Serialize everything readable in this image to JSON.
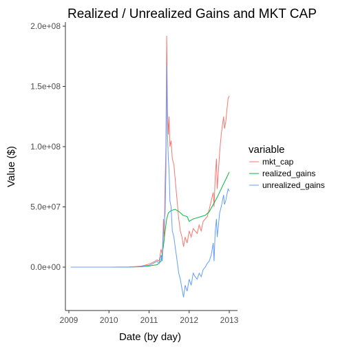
{
  "chart_data": {
    "type": "line",
    "title": "Realized / Unrealized Gains and MKT CAP",
    "xlabel": "Date (by day)",
    "ylabel": "Value ($)",
    "xlim": [
      2009.0,
      2013.0
    ],
    "ylim": [
      -25000000,
      200000000
    ],
    "x_ticks": [
      {
        "value": 2009,
        "label": "2009"
      },
      {
        "value": 2010,
        "label": "2010"
      },
      {
        "value": 2011,
        "label": "2011"
      },
      {
        "value": 2012,
        "label": "2012"
      },
      {
        "value": 2013,
        "label": "2013"
      }
    ],
    "y_ticks": [
      {
        "value": 0,
        "label": "0.0e+00"
      },
      {
        "value": 50000000,
        "label": "5.0e+07"
      },
      {
        "value": 100000000,
        "label": "1.0e+08"
      },
      {
        "value": 150000000,
        "label": "1.5e+08"
      },
      {
        "value": 200000000,
        "label": "2.0e+08"
      }
    ],
    "grid": false,
    "legend": {
      "title": "variable",
      "position": "right"
    },
    "series": [
      {
        "name": "mkt_cap",
        "color": "#F8766D",
        "points": [
          [
            2009.05,
            0
          ],
          [
            2010.0,
            0
          ],
          [
            2010.5,
            100000
          ],
          [
            2010.8,
            800000
          ],
          [
            2011.0,
            2500000
          ],
          [
            2011.1,
            4000000
          ],
          [
            2011.2,
            6000000
          ],
          [
            2011.25,
            5000000
          ],
          [
            2011.3,
            15000000
          ],
          [
            2011.33,
            10000000
          ],
          [
            2011.36,
            40000000
          ],
          [
            2011.38,
            25000000
          ],
          [
            2011.4,
            70000000
          ],
          [
            2011.42,
            100000000
          ],
          [
            2011.44,
            192000000
          ],
          [
            2011.46,
            130000000
          ],
          [
            2011.48,
            110000000
          ],
          [
            2011.5,
            125000000
          ],
          [
            2011.52,
            100000000
          ],
          [
            2011.55,
            105000000
          ],
          [
            2011.58,
            90000000
          ],
          [
            2011.62,
            85000000
          ],
          [
            2011.66,
            70000000
          ],
          [
            2011.7,
            55000000
          ],
          [
            2011.74,
            40000000
          ],
          [
            2011.78,
            30000000
          ],
          [
            2011.82,
            25000000
          ],
          [
            2011.86,
            17000000
          ],
          [
            2011.9,
            25000000
          ],
          [
            2011.95,
            20000000
          ],
          [
            2012.0,
            30000000
          ],
          [
            2012.05,
            25000000
          ],
          [
            2012.1,
            32000000
          ],
          [
            2012.15,
            30000000
          ],
          [
            2012.2,
            28000000
          ],
          [
            2012.25,
            35000000
          ],
          [
            2012.3,
            30000000
          ],
          [
            2012.35,
            38000000
          ],
          [
            2012.4,
            40000000
          ],
          [
            2012.45,
            42000000
          ],
          [
            2012.5,
            48000000
          ],
          [
            2012.55,
            55000000
          ],
          [
            2012.6,
            62000000
          ],
          [
            2012.62,
            50000000
          ],
          [
            2012.65,
            75000000
          ],
          [
            2012.68,
            90000000
          ],
          [
            2012.7,
            65000000
          ],
          [
            2012.73,
            80000000
          ],
          [
            2012.76,
            95000000
          ],
          [
            2012.8,
            110000000
          ],
          [
            2012.83,
            118000000
          ],
          [
            2012.86,
            125000000
          ],
          [
            2012.88,
            115000000
          ],
          [
            2012.91,
            120000000
          ],
          [
            2012.94,
            130000000
          ],
          [
            2012.97,
            140000000
          ],
          [
            2013.0,
            142000000
          ]
        ]
      },
      {
        "name": "realized_gains",
        "color": "#00BA38",
        "points": [
          [
            2009.05,
            0
          ],
          [
            2010.0,
            0
          ],
          [
            2010.5,
            50000
          ],
          [
            2010.8,
            300000
          ],
          [
            2011.0,
            1000000
          ],
          [
            2011.2,
            2000000
          ],
          [
            2011.3,
            5000000
          ],
          [
            2011.36,
            18000000
          ],
          [
            2011.4,
            30000000
          ],
          [
            2011.44,
            40000000
          ],
          [
            2011.48,
            45000000
          ],
          [
            2011.55,
            47000000
          ],
          [
            2011.65,
            48000000
          ],
          [
            2011.75,
            46000000
          ],
          [
            2011.85,
            43000000
          ],
          [
            2011.95,
            42000000
          ],
          [
            2012.0,
            38000000
          ],
          [
            2012.1,
            40000000
          ],
          [
            2012.2,
            41000000
          ],
          [
            2012.3,
            42000000
          ],
          [
            2012.4,
            43000000
          ],
          [
            2012.5,
            46000000
          ],
          [
            2012.6,
            52000000
          ],
          [
            2012.7,
            58000000
          ],
          [
            2012.8,
            65000000
          ],
          [
            2012.9,
            72000000
          ],
          [
            2013.0,
            79000000
          ]
        ]
      },
      {
        "name": "unrealized_gains",
        "color": "#619CFF",
        "points": [
          [
            2009.05,
            0
          ],
          [
            2010.0,
            0
          ],
          [
            2010.5,
            50000
          ],
          [
            2010.8,
            500000
          ],
          [
            2011.0,
            1500000
          ],
          [
            2011.1,
            3000000
          ],
          [
            2011.2,
            5000000
          ],
          [
            2011.25,
            3000000
          ],
          [
            2011.3,
            10000000
          ],
          [
            2011.33,
            5000000
          ],
          [
            2011.36,
            30000000
          ],
          [
            2011.4,
            45000000
          ],
          [
            2011.42,
            80000000
          ],
          [
            2011.44,
            168000000
          ],
          [
            2011.46,
            110000000
          ],
          [
            2011.48,
            90000000
          ],
          [
            2011.5,
            80000000
          ],
          [
            2011.52,
            55000000
          ],
          [
            2011.55,
            50000000
          ],
          [
            2011.58,
            30000000
          ],
          [
            2011.62,
            25000000
          ],
          [
            2011.66,
            15000000
          ],
          [
            2011.7,
            5000000
          ],
          [
            2011.74,
            -5000000
          ],
          [
            2011.78,
            -10000000
          ],
          [
            2011.82,
            -18000000
          ],
          [
            2011.86,
            -25000000
          ],
          [
            2011.9,
            -15000000
          ],
          [
            2011.95,
            -20000000
          ],
          [
            2012.0,
            -10000000
          ],
          [
            2012.05,
            -15000000
          ],
          [
            2012.1,
            -5000000
          ],
          [
            2012.15,
            -8000000
          ],
          [
            2012.2,
            -10000000
          ],
          [
            2012.25,
            -5000000
          ],
          [
            2012.3,
            -8000000
          ],
          [
            2012.35,
            -2000000
          ],
          [
            2012.4,
            0
          ],
          [
            2012.45,
            3000000
          ],
          [
            2012.5,
            5000000
          ],
          [
            2012.55,
            10000000
          ],
          [
            2012.6,
            20000000
          ],
          [
            2012.62,
            5000000
          ],
          [
            2012.65,
            30000000
          ],
          [
            2012.68,
            40000000
          ],
          [
            2012.7,
            25000000
          ],
          [
            2012.73,
            35000000
          ],
          [
            2012.76,
            45000000
          ],
          [
            2012.8,
            50000000
          ],
          [
            2012.83,
            55000000
          ],
          [
            2012.86,
            60000000
          ],
          [
            2012.88,
            52000000
          ],
          [
            2012.91,
            55000000
          ],
          [
            2012.94,
            60000000
          ],
          [
            2012.97,
            65000000
          ],
          [
            2013.0,
            63000000
          ]
        ]
      }
    ]
  }
}
